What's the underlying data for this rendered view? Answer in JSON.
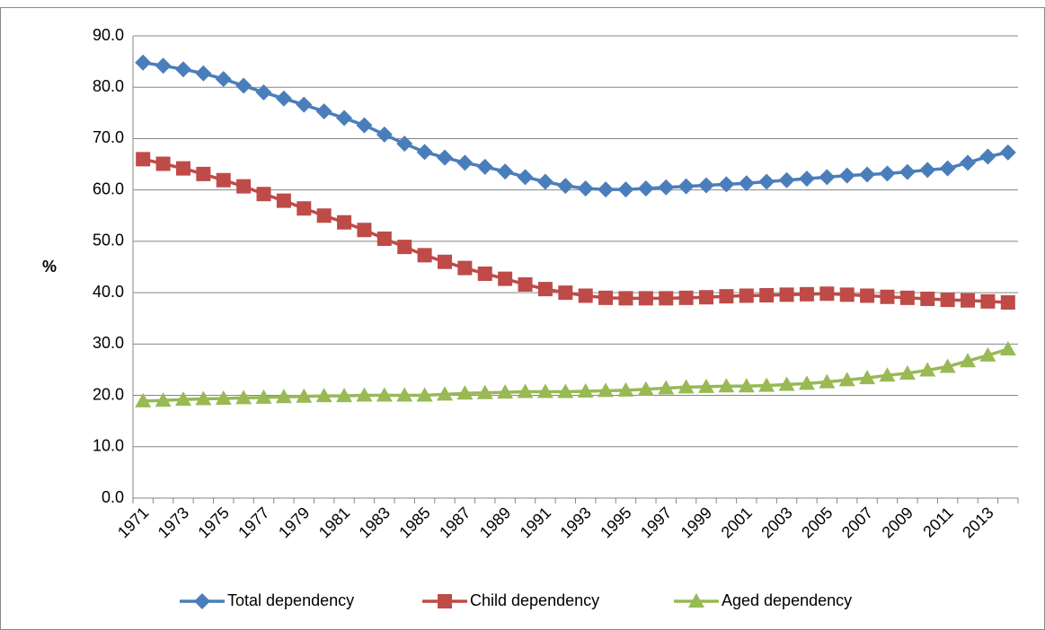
{
  "chart_data": {
    "type": "line",
    "y_label": "%",
    "categories": [
      "1971",
      null,
      "1973",
      null,
      "1975",
      null,
      "1977",
      null,
      "1979",
      null,
      "1981",
      null,
      "1983",
      null,
      "1985",
      null,
      "1987",
      null,
      "1989",
      null,
      "1991",
      null,
      "1993",
      null,
      "1995",
      null,
      "1997",
      null,
      "1999",
      null,
      "2001",
      null,
      "2003",
      null,
      "2005",
      null,
      "2007",
      null,
      "2009",
      null,
      "2011",
      null,
      "2013",
      null
    ],
    "series": [
      {
        "name": "Total dependency",
        "color": "#4a7ebb",
        "marker": "diamond",
        "values": [
          84.8,
          84.2,
          83.5,
          82.7,
          81.6,
          80.3,
          79.0,
          77.8,
          76.6,
          75.3,
          74.0,
          72.6,
          70.8,
          69.0,
          67.4,
          66.3,
          65.3,
          64.5,
          63.6,
          62.5,
          61.6,
          60.8,
          60.3,
          60.1,
          60.1,
          60.3,
          60.5,
          60.7,
          60.9,
          61.1,
          61.3,
          61.6,
          61.9,
          62.2,
          62.5,
          62.8,
          63.0,
          63.2,
          63.5,
          63.9,
          64.2,
          65.3,
          66.5,
          67.3
        ]
      },
      {
        "name": "Child dependency",
        "color": "#be4b48",
        "marker": "square",
        "values": [
          66.0,
          65.1,
          64.2,
          63.1,
          61.9,
          60.7,
          59.2,
          57.9,
          56.4,
          55.0,
          53.7,
          52.2,
          50.5,
          48.9,
          47.3,
          46.0,
          44.8,
          43.7,
          42.7,
          41.6,
          40.7,
          40.0,
          39.4,
          39.0,
          38.9,
          38.9,
          38.9,
          39.0,
          39.1,
          39.3,
          39.4,
          39.5,
          39.6,
          39.7,
          39.8,
          39.6,
          39.4,
          39.2,
          39.0,
          38.8,
          38.6,
          38.5,
          38.3,
          38.1
        ]
      },
      {
        "name": "Aged dependency",
        "color": "#98b954",
        "marker": "triangle",
        "values": [
          18.9,
          19.0,
          19.2,
          19.3,
          19.4,
          19.5,
          19.6,
          19.7,
          19.8,
          19.9,
          19.9,
          20.0,
          20.0,
          20.0,
          20.0,
          20.2,
          20.4,
          20.5,
          20.6,
          20.7,
          20.7,
          20.7,
          20.8,
          20.9,
          21.0,
          21.2,
          21.4,
          21.6,
          21.7,
          21.8,
          21.8,
          21.9,
          22.1,
          22.3,
          22.6,
          23.0,
          23.4,
          23.9,
          24.3,
          24.9,
          25.6,
          26.7,
          27.8,
          29.0
        ]
      }
    ],
    "ylim": [
      0,
      90
    ],
    "yticks": [
      {
        "value": 0,
        "label": "0.0"
      },
      {
        "value": 10,
        "label": "10.0"
      },
      {
        "value": 20,
        "label": "20.0"
      },
      {
        "value": 30,
        "label": "30.0"
      },
      {
        "value": 40,
        "label": "40.0"
      },
      {
        "value": 50,
        "label": "50.0"
      },
      {
        "value": 60,
        "label": "60.0"
      },
      {
        "value": 70,
        "label": "70.0"
      },
      {
        "value": 80,
        "label": "80.0"
      },
      {
        "value": 90,
        "label": "90.0"
      }
    ],
    "grid": true,
    "legend": "bottom"
  }
}
